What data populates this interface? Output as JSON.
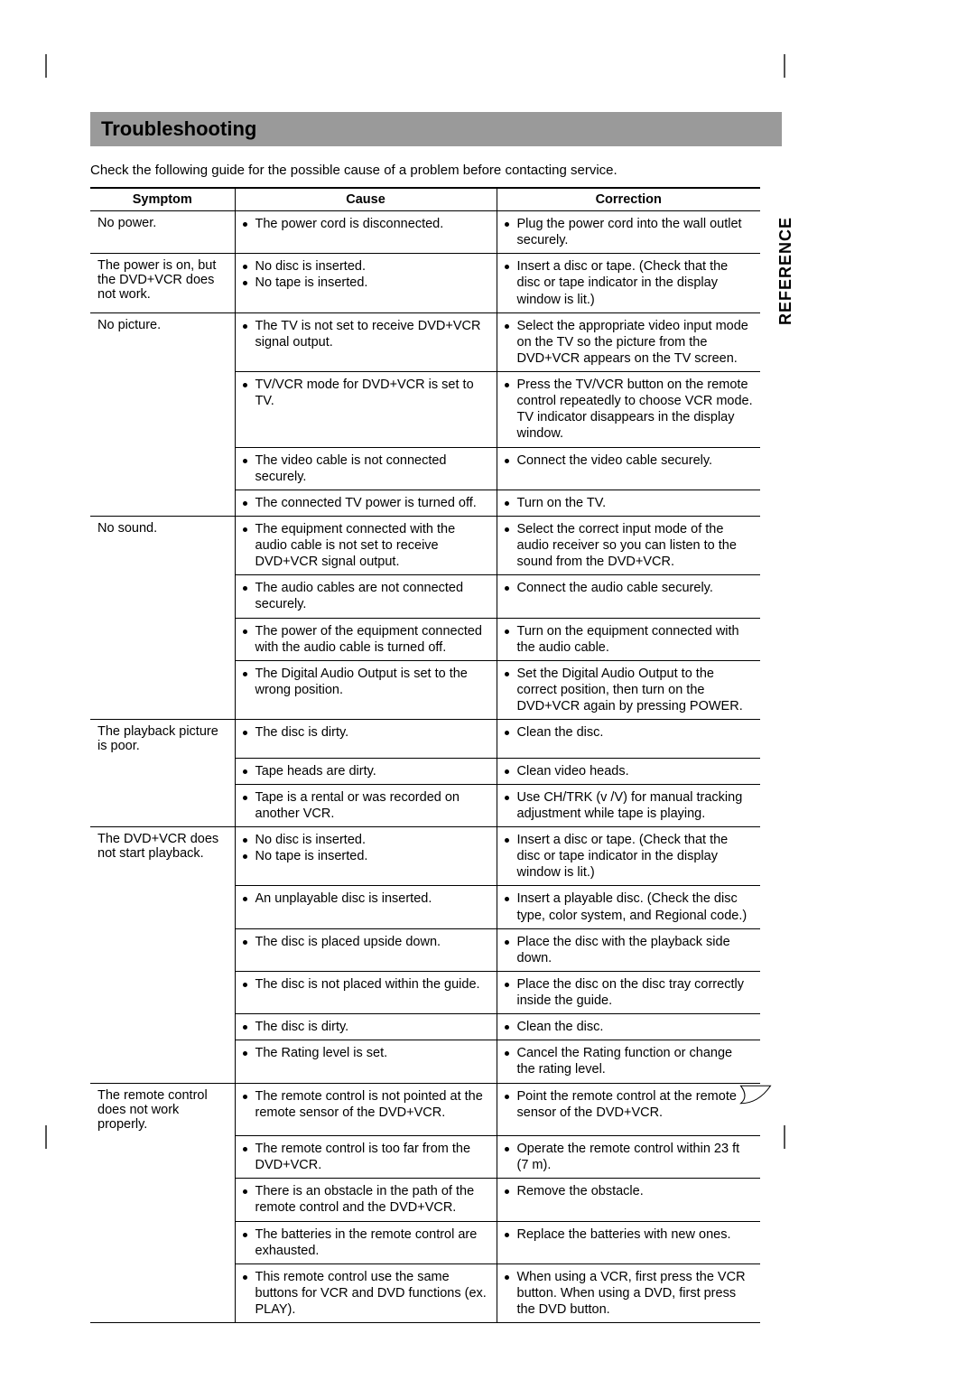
{
  "title": "Troubleshooting",
  "intro": "Check the following guide for the possible cause of a problem before contacting service.",
  "side_tab": "REFERENCE",
  "headers": {
    "symptom": "Symptom",
    "cause": "Cause",
    "correction": "Correction"
  },
  "colors": {
    "title_bg": "#9a9a9a",
    "text": "#000000",
    "rule": "#000000",
    "background": "#ffffff"
  },
  "columns": {
    "symptom_w": 160,
    "cause_w": 290,
    "correction_w": 292
  },
  "fonts": {
    "body_pt": 14.5,
    "title_pt": 22,
    "header_weight": "bold"
  },
  "groups": [
    {
      "symptom": "No power.",
      "rows": [
        {
          "causes": [
            "The power cord is disconnected."
          ],
          "corrections": [
            "Plug the power cord into the wall outlet securely."
          ]
        }
      ]
    },
    {
      "symptom": "The power is on, but the DVD+VCR does not work.",
      "rows": [
        {
          "causes": [
            "No disc is inserted.",
            "No tape is inserted."
          ],
          "corrections": [
            "Insert a disc or tape. (Check that the disc or tape indicator in the display window is lit.)"
          ]
        }
      ]
    },
    {
      "symptom": "No picture.",
      "rows": [
        {
          "causes": [
            "The TV is not set to receive DVD+VCR signal output."
          ],
          "corrections": [
            "Select the appropriate video input mode on the TV so the picture from the DVD+VCR appears on the TV screen."
          ]
        },
        {
          "causes": [
            "TV/VCR mode for DVD+VCR is set to TV."
          ],
          "corrections": [
            "Press the TV/VCR button on the remote control repeatedly to choose VCR mode. TV indicator disappears in the display window."
          ]
        },
        {
          "causes": [
            "The video cable is not connected securely."
          ],
          "corrections": [
            "Connect the video cable securely."
          ]
        },
        {
          "causes": [
            "The connected TV power is turned off."
          ],
          "corrections": [
            "Turn on the TV."
          ]
        }
      ]
    },
    {
      "symptom": "No sound.",
      "rows": [
        {
          "causes": [
            "The equipment connected with the audio cable is not set to receive DVD+VCR signal output."
          ],
          "corrections": [
            "Select the correct input mode of the audio receiver so you can listen to the sound from the DVD+VCR."
          ]
        },
        {
          "causes": [
            "The audio cables are not connected securely."
          ],
          "corrections": [
            "Connect the audio cable securely."
          ]
        },
        {
          "causes": [
            "The power of the equipment connected with the audio cable is turned off."
          ],
          "corrections": [
            "Turn on the equipment connected with the audio cable."
          ]
        },
        {
          "causes": [
            "The Digital Audio Output is set to the wrong position."
          ],
          "corrections": [
            "Set the Digital Audio Output to the correct position, then turn on the DVD+VCR again by pressing POWER."
          ]
        }
      ]
    },
    {
      "symptom": "The playback picture is poor.",
      "rows": [
        {
          "causes": [
            "The disc is dirty."
          ],
          "corrections": [
            "Clean the disc."
          ]
        },
        {
          "causes": [
            "Tape heads are dirty."
          ],
          "corrections": [
            "Clean video heads."
          ]
        },
        {
          "causes": [
            "Tape is a rental or was recorded on another VCR."
          ],
          "corrections": [
            "Use CH/TRK (v /V) for manual tracking adjustment while tape is playing."
          ]
        }
      ]
    },
    {
      "symptom": "The DVD+VCR does not start playback.",
      "rows": [
        {
          "causes": [
            "No disc is inserted.",
            "No tape is inserted."
          ],
          "corrections": [
            "Insert a disc or tape. (Check that the disc or tape indicator in the display window is lit.)"
          ]
        },
        {
          "causes": [
            "An unplayable disc is inserted."
          ],
          "corrections": [
            "Insert a playable disc. (Check the disc type, color system, and Regional code.)"
          ]
        },
        {
          "causes": [
            "The disc is placed upside down."
          ],
          "corrections": [
            "Place the disc with the playback side down."
          ]
        },
        {
          "causes": [
            "The disc is not placed within the guide."
          ],
          "corrections": [
            "Place the disc on the disc tray correctly inside the guide."
          ]
        },
        {
          "causes": [
            "The disc is dirty."
          ],
          "corrections": [
            "Clean the disc."
          ]
        },
        {
          "causes": [
            "The Rating level is set."
          ],
          "corrections": [
            "Cancel the Rating function or change the rating  level."
          ]
        }
      ]
    },
    {
      "symptom": "The remote control does not work properly.",
      "rows": [
        {
          "causes": [
            "The remote control is not pointed at the remote sensor of the DVD+VCR."
          ],
          "corrections": [
            "Point the remote control at the remote sensor of the DVD+VCR."
          ]
        },
        {
          "causes": [
            "The remote control is too far from the DVD+VCR."
          ],
          "corrections": [
            "Operate the remote control within 23 ft (7 m)."
          ]
        },
        {
          "causes": [
            "There is an obstacle in the path of the remote control and the DVD+VCR."
          ],
          "corrections": [
            "Remove the obstacle."
          ]
        },
        {
          "causes": [
            "The batteries in the remote control are exhausted."
          ],
          "corrections": [
            "Replace the batteries with new ones."
          ]
        },
        {
          "causes": [
            "This remote control use the same buttons for VCR and DVD functions (ex. PLAY)."
          ],
          "corrections": [
            "When using a VCR, first press the VCR button. When using a DVD, first press the DVD button."
          ]
        }
      ]
    }
  ]
}
